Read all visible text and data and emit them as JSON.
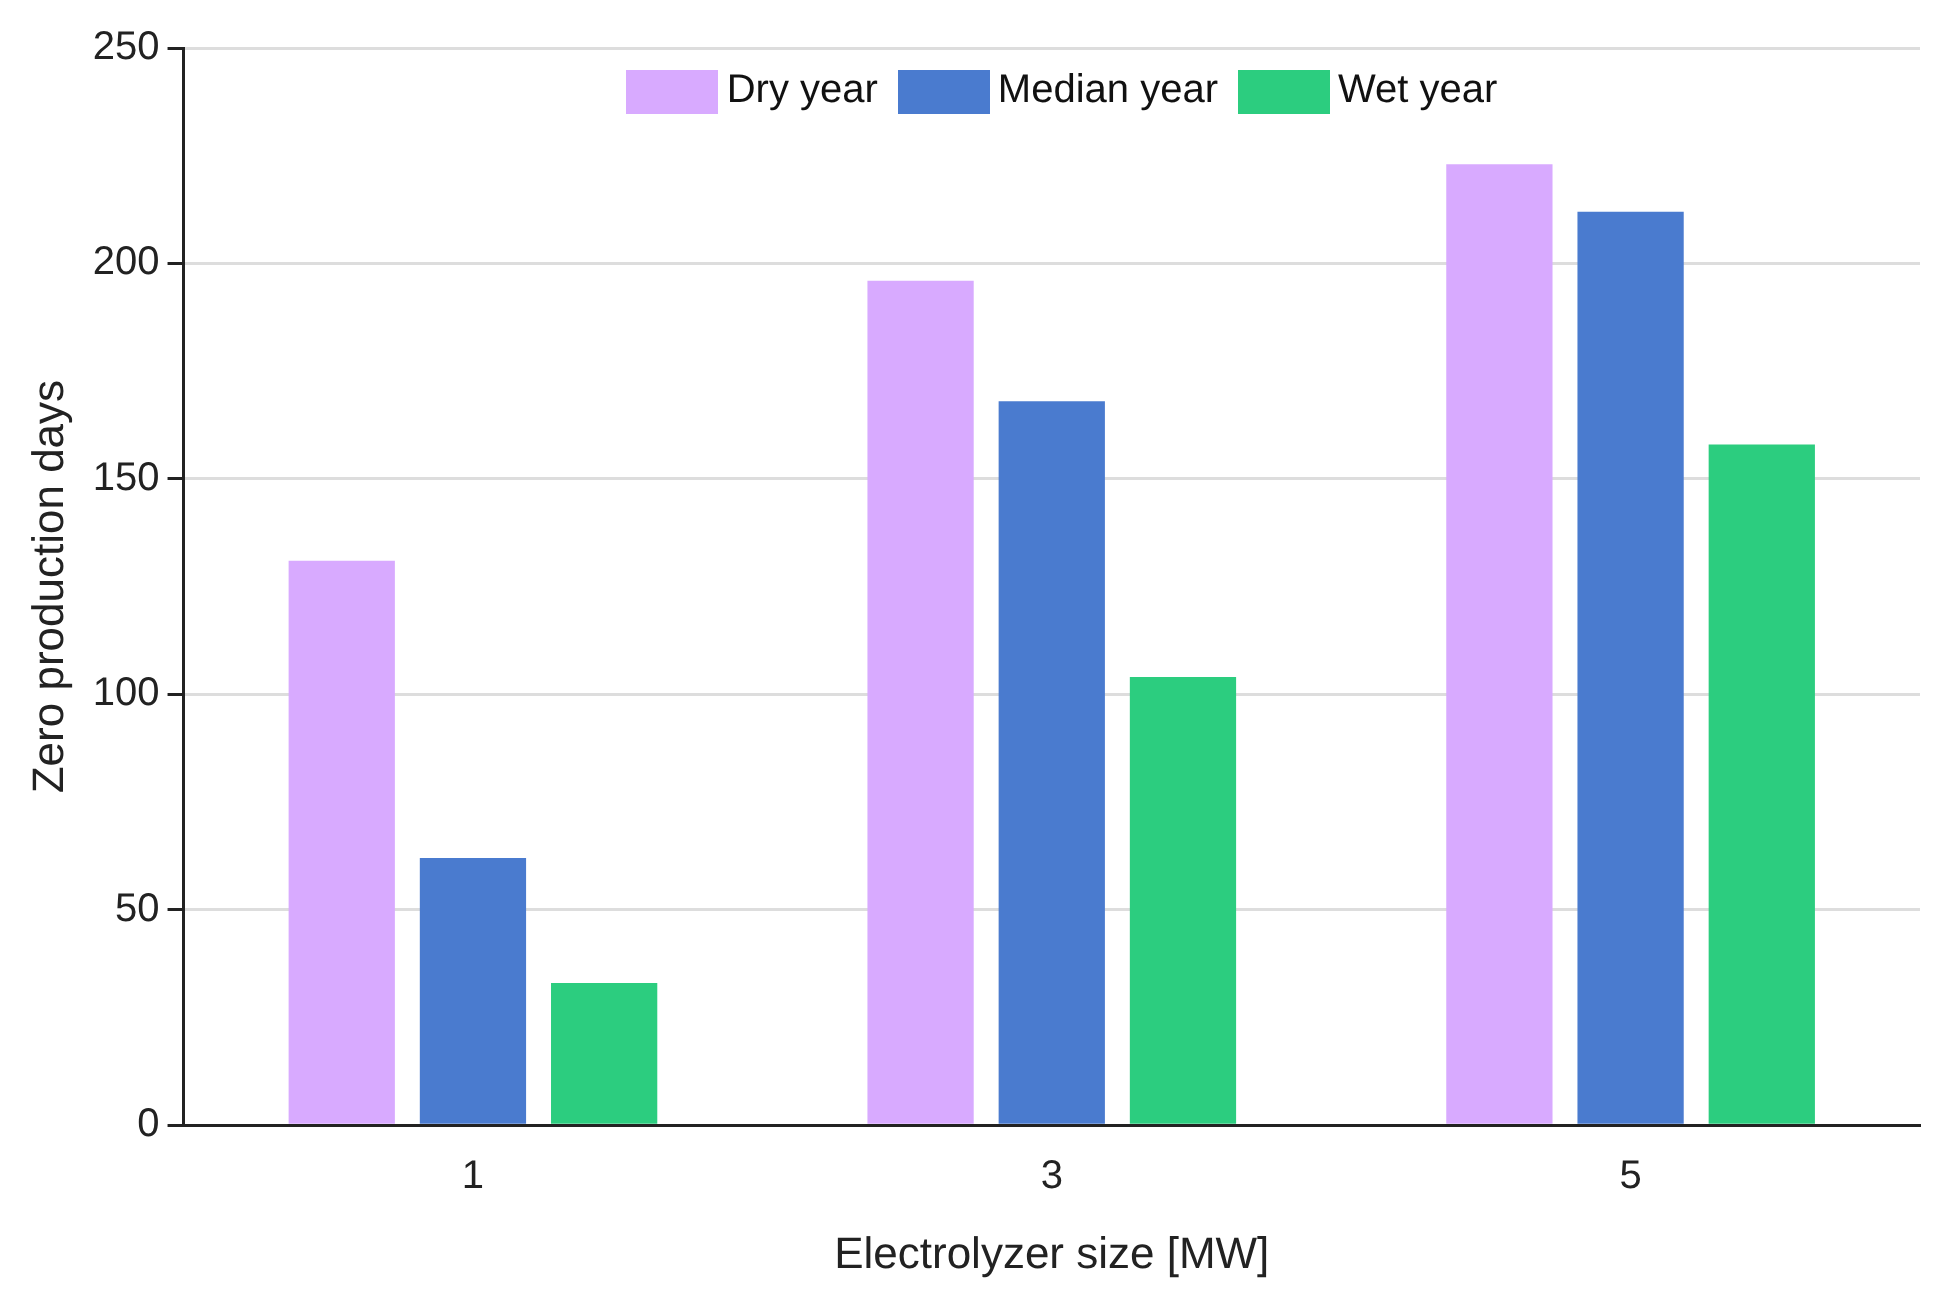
{
  "chart_data": {
    "type": "bar",
    "xlabel": "Electrolyzer size [MW]",
    "ylabel": "Zero production days",
    "categories": [
      "1",
      "3",
      "5"
    ],
    "series": [
      {
        "name": "Dry year",
        "color": "#d8aaff",
        "values": [
          131,
          196,
          223
        ]
      },
      {
        "name": "Median year",
        "color": "#4a7bcf",
        "values": [
          62,
          168,
          212
        ]
      },
      {
        "name": "Wet year",
        "color": "#2ccd7f",
        "values": [
          33,
          104,
          158
        ]
      }
    ],
    "ylim": [
      0,
      250
    ],
    "yticks": [
      0,
      50,
      100,
      150,
      200,
      250
    ],
    "grid": "y",
    "legend": "top"
  }
}
